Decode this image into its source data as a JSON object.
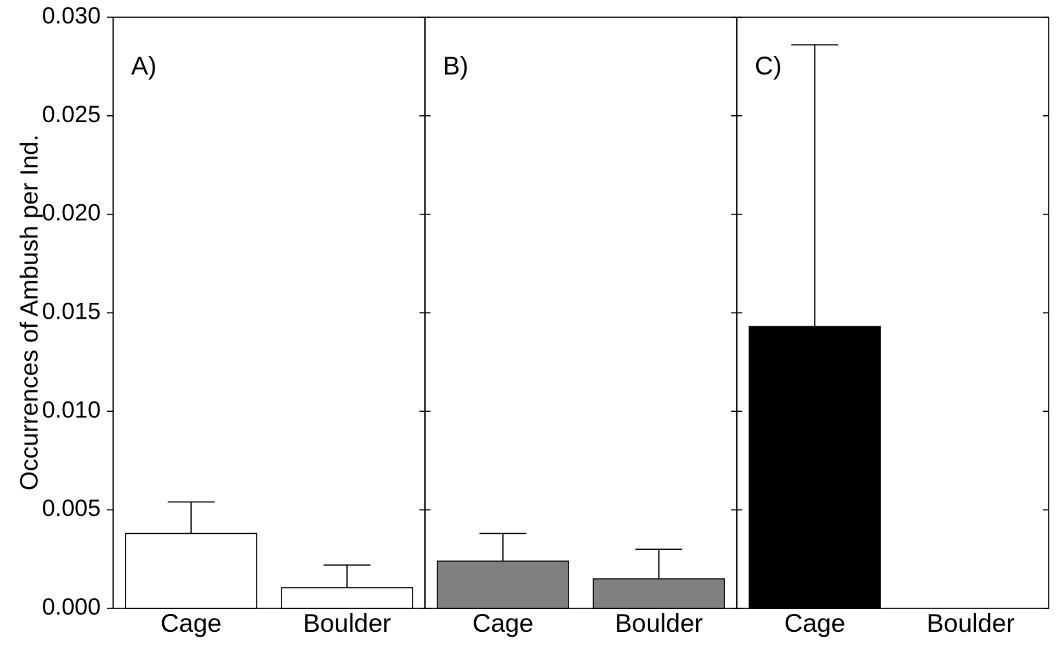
{
  "chart_data": {
    "type": "bar",
    "ylabel": "Occurrences of Ambush per Ind.",
    "ylim": [
      0,
      0.03
    ],
    "yticks": [
      "0.000",
      "0.005",
      "0.010",
      "0.015",
      "0.020",
      "0.025",
      "0.030"
    ],
    "grid": false,
    "panels": [
      {
        "label": "A)",
        "color": "#ffffff",
        "categories": [
          "Cage",
          "Boulder"
        ],
        "values": [
          0.0038,
          0.00105
        ],
        "errors": [
          0.0016,
          0.00115
        ]
      },
      {
        "label": "B)",
        "color": "#808080",
        "categories": [
          "Cage",
          "Boulder"
        ],
        "values": [
          0.0024,
          0.0015
        ],
        "errors": [
          0.0014,
          0.0015
        ]
      },
      {
        "label": "C)",
        "color": "#000000",
        "categories": [
          "Cage",
          "Boulder"
        ],
        "values": [
          0.0143,
          0
        ],
        "errors": [
          0.0143,
          0
        ]
      }
    ]
  }
}
